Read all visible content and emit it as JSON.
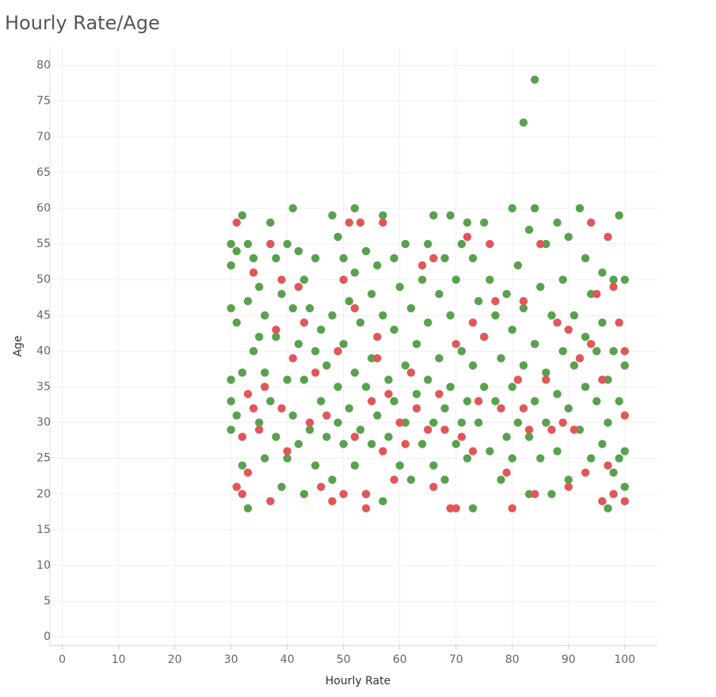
{
  "chart_data": {
    "type": "scatter",
    "title": "Hourly Rate/Age",
    "x_label": "Hourly Rate",
    "y_label": "Age",
    "xlim": [
      -2.2,
      105.8
    ],
    "ylim": [
      -1.2,
      82.5
    ],
    "xticks": [
      0,
      10,
      20,
      30,
      40,
      50,
      60,
      70,
      80,
      90,
      100
    ],
    "yticks": [
      0,
      5,
      10,
      15,
      20,
      25,
      30,
      35,
      40,
      45,
      50,
      55,
      60,
      65,
      70,
      75,
      80
    ],
    "grid": true,
    "series": [
      {
        "color": "#59a14f",
        "x": [
          30,
          30,
          30,
          30,
          30,
          30,
          31,
          31,
          31,
          32,
          32,
          32,
          33,
          33,
          33,
          34,
          34,
          35,
          35,
          35,
          36,
          36,
          36,
          37,
          37,
          38,
          38,
          38,
          39,
          39,
          40,
          40,
          40,
          41,
          41,
          41,
          42,
          42,
          42,
          43,
          43,
          43,
          44,
          44,
          45,
          45,
          45,
          46,
          46,
          47,
          47,
          48,
          48,
          48,
          49,
          49,
          49,
          50,
          50,
          50,
          51,
          51,
          52,
          52,
          52,
          52,
          53,
          53,
          54,
          54,
          54,
          55,
          55,
          55,
          56,
          56,
          57,
          57,
          57,
          58,
          58,
          59,
          59,
          59,
          60,
          60,
          61,
          61,
          61,
          62,
          62,
          63,
          63,
          64,
          64,
          65,
          65,
          65,
          66,
          66,
          66,
          67,
          67,
          68,
          68,
          68,
          69,
          69,
          69,
          70,
          70,
          71,
          71,
          71,
          72,
          72,
          72,
          73,
          73,
          73,
          74,
          74,
          75,
          75,
          75,
          76,
          76,
          77,
          77,
          78,
          78,
          79,
          79,
          80,
          80,
          80,
          80,
          81,
          81,
          82,
          82,
          82,
          83,
          83,
          83,
          84,
          84,
          84,
          84,
          85,
          85,
          86,
          86,
          86,
          87,
          87,
          88,
          88,
          88,
          89,
          89,
          90,
          90,
          90,
          91,
          91,
          92,
          92,
          93,
          93,
          93,
          94,
          94,
          95,
          95,
          96,
          96,
          96,
          97,
          97,
          97,
          98,
          98,
          98,
          99,
          99,
          99,
          100,
          100,
          100,
          100
        ],
        "values": [
          55,
          52,
          46,
          36,
          33,
          29,
          54,
          44,
          31,
          59,
          37,
          24,
          18,
          47,
          55,
          53,
          40,
          49,
          42,
          30,
          45,
          37,
          25,
          58,
          33,
          53,
          42,
          28,
          48,
          21,
          55,
          36,
          25,
          60,
          46,
          31,
          54,
          41,
          27,
          50,
          36,
          20,
          46,
          29,
          53,
          40,
          24,
          43,
          33,
          38,
          28,
          59,
          45,
          22,
          56,
          35,
          30,
          53,
          41,
          27,
          47,
          32,
          60,
          51,
          37,
          24,
          44,
          29,
          54,
          35,
          20,
          48,
          39,
          27,
          52,
          31,
          59,
          45,
          19,
          36,
          28,
          53,
          43,
          33,
          49,
          24,
          55,
          38,
          30,
          46,
          22,
          41,
          34,
          50,
          27,
          55,
          44,
          36,
          59,
          30,
          24,
          48,
          39,
          53,
          32,
          22,
          59,
          45,
          35,
          50,
          27,
          55,
          40,
          30,
          58,
          33,
          25,
          18,
          53,
          38,
          47,
          30,
          58,
          42,
          35,
          26,
          50,
          45,
          33,
          22,
          39,
          48,
          28,
          60,
          43,
          35,
          25,
          52,
          30,
          72,
          46,
          38,
          57,
          28,
          20,
          78,
          60,
          41,
          33,
          49,
          25,
          55,
          37,
          30,
          45,
          20,
          58,
          34,
          26,
          50,
          40,
          56,
          32,
          22,
          45,
          38,
          60,
          29,
          53,
          42,
          35,
          48,
          25,
          40,
          33,
          51,
          44,
          27,
          18,
          36,
          30,
          50,
          40,
          23,
          59,
          33,
          25,
          50,
          38,
          26,
          21
        ]
      },
      {
        "color": "#e15759",
        "x": [
          31,
          31,
          32,
          32,
          33,
          33,
          34,
          34,
          35,
          36,
          37,
          37,
          38,
          39,
          39,
          40,
          41,
          42,
          43,
          44,
          45,
          46,
          47,
          48,
          49,
          50,
          50,
          51,
          52,
          52,
          53,
          54,
          54,
          55,
          56,
          56,
          57,
          57,
          58,
          59,
          60,
          61,
          62,
          63,
          64,
          65,
          66,
          66,
          67,
          68,
          69,
          70,
          70,
          71,
          72,
          73,
          73,
          74,
          75,
          76,
          77,
          78,
          79,
          80,
          81,
          82,
          82,
          83,
          84,
          85,
          86,
          87,
          88,
          89,
          90,
          90,
          91,
          92,
          93,
          94,
          94,
          95,
          96,
          96,
          97,
          97,
          98,
          98,
          99,
          100,
          100,
          100
        ],
        "values": [
          58,
          21,
          28,
          20,
          34,
          23,
          51,
          32,
          29,
          35,
          55,
          19,
          43,
          50,
          32,
          26,
          39,
          49,
          44,
          30,
          37,
          21,
          31,
          19,
          40,
          50,
          20,
          58,
          46,
          28,
          58,
          20,
          18,
          33,
          42,
          39,
          58,
          26,
          34,
          22,
          30,
          27,
          37,
          32,
          52,
          29,
          53,
          21,
          34,
          29,
          18,
          41,
          18,
          28,
          56,
          44,
          26,
          33,
          42,
          55,
          47,
          32,
          23,
          18,
          36,
          47,
          32,
          29,
          20,
          55,
          36,
          29,
          44,
          30,
          43,
          21,
          29,
          39,
          23,
          58,
          41,
          48,
          36,
          19,
          56,
          24,
          49,
          20,
          44,
          40,
          31,
          19
        ]
      }
    ]
  }
}
